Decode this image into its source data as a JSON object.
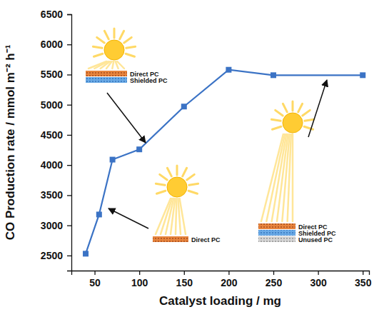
{
  "chart_data": {
    "type": "line",
    "x_label": "Catalyst loading / mg",
    "y_label": "CO Production rate / mmol m⁻² h⁻¹",
    "x": [
      40,
      55,
      70,
      100,
      150,
      200,
      250,
      350
    ],
    "values": [
      2530,
      3180,
      4090,
      4260,
      4970,
      5580,
      5490,
      5490
    ],
    "color": "#3b73c5",
    "marker": "square",
    "line_style": "solid",
    "xlim": [
      24,
      357
    ],
    "xticks": [
      50,
      100,
      150,
      200,
      250,
      300,
      350
    ],
    "ylim": [
      2250,
      6500
    ],
    "yticks": [
      2500,
      3000,
      3500,
      4000,
      4500,
      5000,
      5500,
      6000,
      6500
    ],
    "grid": false,
    "annotations": [
      {
        "layers": [
          "Direct PC",
          "Shielded PC"
        ]
      },
      {
        "layers": [
          "Direct PC"
        ]
      },
      {
        "layers": [
          "Direct PC",
          "Shielded PC",
          "Unused PC"
        ]
      }
    ]
  }
}
